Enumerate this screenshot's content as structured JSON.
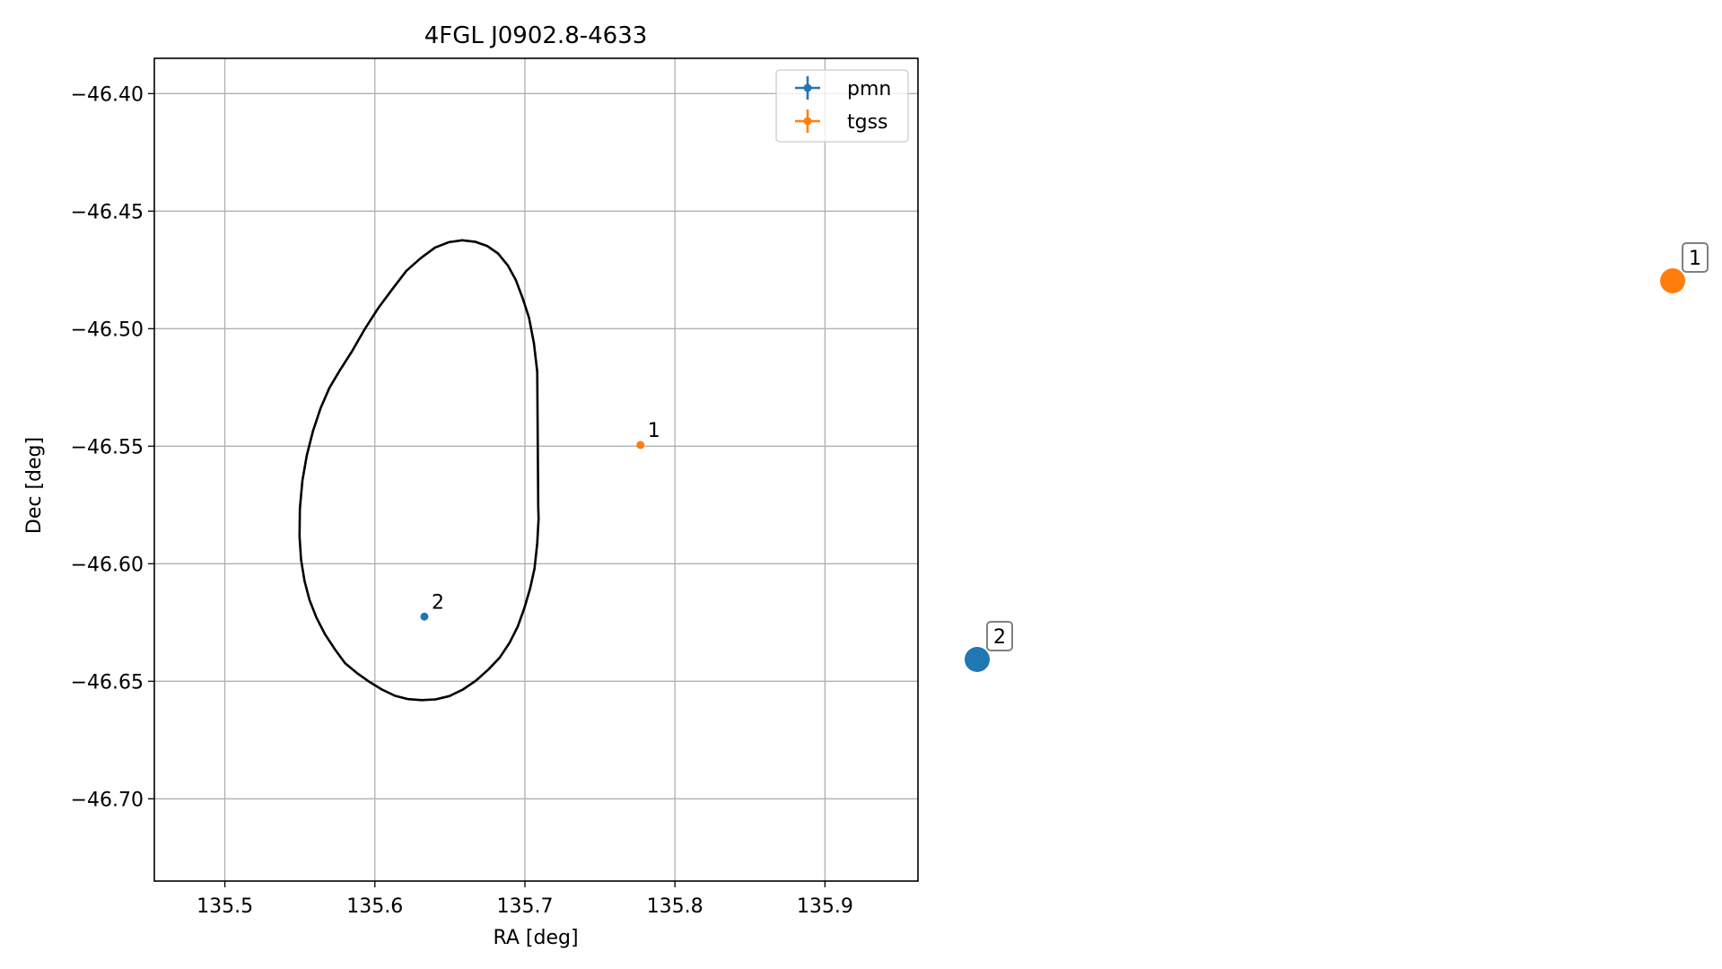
{
  "chart_data": {
    "type": "scatter",
    "title": "4FGL J0902.8-4633",
    "xlabel": "RA [deg]",
    "ylabel": "Dec [deg]",
    "xlim": [
      135.453,
      135.962
    ],
    "ylim": [
      -46.735,
      -46.385
    ],
    "xticks": [
      135.5,
      135.6,
      135.7,
      135.8,
      135.9
    ],
    "xtick_labels": [
      "135.5",
      "135.6",
      "135.7",
      "135.8",
      "135.9"
    ],
    "yticks": [
      -46.4,
      -46.45,
      -46.5,
      -46.55,
      -46.6,
      -46.65,
      -46.7
    ],
    "ytick_labels": [
      "−46.40",
      "−46.45",
      "−46.50",
      "−46.55",
      "−46.60",
      "−46.65",
      "−46.70"
    ],
    "grid": true,
    "legend_position": "upper-right",
    "series": [
      {
        "name": "pmn",
        "color": "#1f77b4",
        "points": [
          {
            "ra": 135.633,
            "dec": -46.6225,
            "label": "2"
          }
        ]
      },
      {
        "name": "tgss",
        "color": "#ff7f0e",
        "points": [
          {
            "ra": 135.777,
            "dec": -46.5495,
            "label": "1"
          }
        ]
      }
    ],
    "ellipse": {
      "ra": [
        135.7089,
        135.7091,
        135.7082,
        135.7064,
        135.7035,
        135.6997,
        135.6952,
        135.6898,
        135.6833,
        135.6757,
        135.6674,
        135.6587,
        135.6497,
        135.6404,
        135.6312,
        135.6222,
        135.6134,
        135.6047,
        135.5962,
        135.5879,
        135.5801,
        135.5731,
        135.5666,
        135.561,
        135.5565,
        135.5531,
        135.5508,
        135.5498,
        135.55,
        135.5517,
        135.5546,
        135.5588,
        135.5639,
        135.5697,
        135.5766,
        135.5846,
        135.5933,
        135.6024,
        135.6116,
        135.621,
        135.6306,
        135.6401,
        135.6493,
        135.6581,
        135.6667,
        135.6748,
        135.6821,
        135.6886,
        135.694,
        135.6985,
        135.7027,
        135.706,
        135.7082
      ],
      "dec": [
        -46.5756,
        -46.5809,
        -46.5913,
        -46.602,
        -46.6105,
        -46.6187,
        -46.6268,
        -46.6336,
        -46.6399,
        -46.645,
        -46.6497,
        -46.6535,
        -46.6563,
        -46.6577,
        -46.658,
        -46.6576,
        -46.6562,
        -46.6535,
        -46.6502,
        -46.6464,
        -46.6423,
        -46.6362,
        -46.6298,
        -46.6229,
        -46.6155,
        -46.6074,
        -46.5983,
        -46.5882,
        -46.5765,
        -46.5646,
        -46.5539,
        -46.5434,
        -46.5337,
        -46.5252,
        -46.5178,
        -46.5098,
        -46.5001,
        -46.4911,
        -46.4832,
        -46.4754,
        -46.47,
        -46.4655,
        -46.4632,
        -46.4624,
        -46.463,
        -46.4648,
        -46.468,
        -46.4731,
        -46.4794,
        -46.4871,
        -46.4953,
        -46.5062,
        -46.5183
      ]
    },
    "inset_markers": [
      {
        "label": "1",
        "color": "#ff7f0e"
      },
      {
        "label": "2",
        "color": "#1f77b4"
      }
    ]
  }
}
